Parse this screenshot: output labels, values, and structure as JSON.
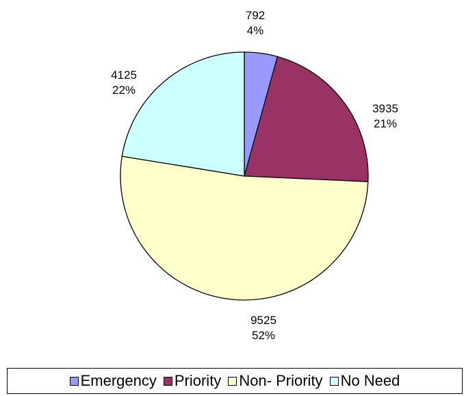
{
  "chart_data": {
    "type": "pie",
    "title": "",
    "slices": [
      {
        "name": "Emergency",
        "value": 792,
        "percent": "4%",
        "color": "#9999ff"
      },
      {
        "name": "Priority",
        "value": 3935,
        "percent": "21%",
        "color": "#993366"
      },
      {
        "name": "Non- Priority",
        "value": 9525,
        "percent": "52%",
        "color": "#ffffcc"
      },
      {
        "name": "No Need",
        "value": 4125,
        "percent": "22%",
        "color": "#ccffff"
      }
    ],
    "legend_position": "bottom"
  }
}
